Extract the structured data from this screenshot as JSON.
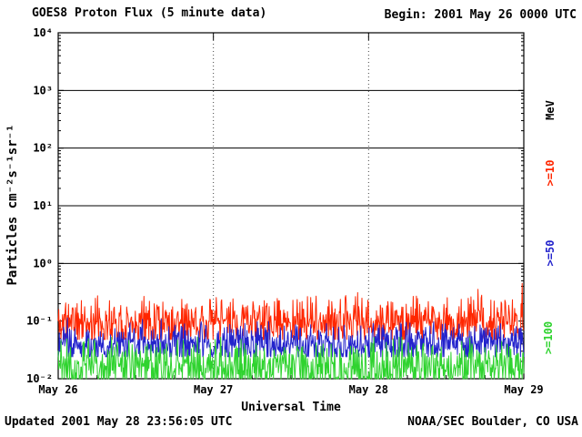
{
  "header": {
    "title": "GOES8 Proton Flux (5 minute data)",
    "begin_label": "Begin: 2001 May 26 0000 UTC"
  },
  "footer": {
    "updated": "Updated 2001 May 28 23:56:05 UTC",
    "source": "NOAA/SEC Boulder, CO USA"
  },
  "right_axis": {
    "unit_label": "MeV"
  },
  "chart_data": {
    "type": "line",
    "title": "GOES8 Proton Flux (5 minute data)",
    "xlabel": "Universal Time",
    "ylabel": "Particles cm⁻²s⁻¹sr⁻¹",
    "ylim_log10": [
      -2,
      4
    ],
    "x_range_days": 3,
    "points_per_day": 288,
    "grid_decades_log10": [
      0,
      1,
      2,
      3
    ],
    "day_gridlines": [
      1,
      2
    ],
    "x_ticks": [
      {
        "day": 0,
        "label": "May 26"
      },
      {
        "day": 1,
        "label": "May 27"
      },
      {
        "day": 2,
        "label": "May 28"
      },
      {
        "day": 3,
        "label": "May 29"
      }
    ],
    "y_ticks": [
      {
        "log10": 4,
        "label": "10⁴"
      },
      {
        "log10": 3,
        "label": "10³"
      },
      {
        "log10": 2,
        "label": "10²"
      },
      {
        "log10": 1,
        "label": "10¹"
      },
      {
        "log10": 0,
        "label": "10⁰"
      },
      {
        "log10": -1,
        "label": "10⁻¹"
      },
      {
        "log10": -2,
        "label": "10⁻²"
      }
    ],
    "series": [
      {
        "name": ">=10",
        "color": "#ff2600",
        "seed": 11,
        "base_log10": -1.02,
        "spread_log10": 0.5,
        "spike_prob": 0.03,
        "spike_mag_log10": 0.35,
        "min_log10": -1.32,
        "max_log10": -0.28
      },
      {
        "name": ">=50",
        "color": "#2323cc",
        "seed": 23,
        "base_log10": -1.4,
        "spread_log10": 0.42,
        "spike_prob": 0.02,
        "spike_mag_log10": 0.3,
        "min_log10": -1.62,
        "max_log10": -0.85
      },
      {
        "name": ">=100",
        "color": "#2fd32f",
        "seed": 37,
        "base_log10": -1.8,
        "spread_log10": 0.55,
        "spike_prob": 0.02,
        "spike_mag_log10": 0.35,
        "min_log10": -2.0,
        "max_log10": -1.28
      }
    ]
  }
}
